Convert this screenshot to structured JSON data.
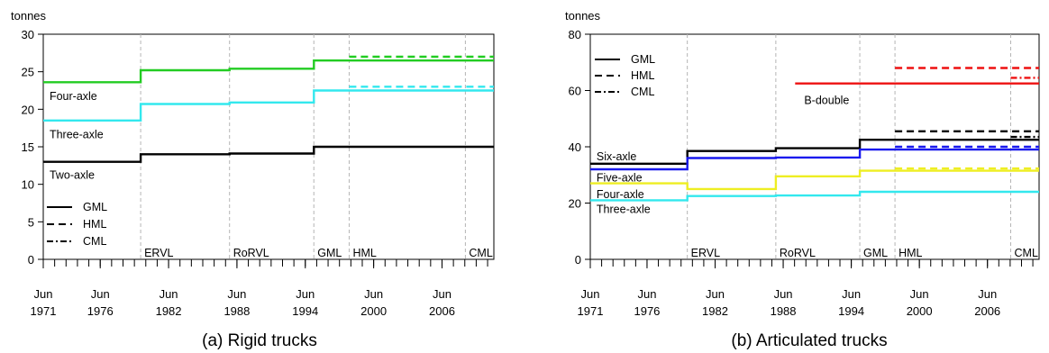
{
  "chart_data": [
    {
      "type": "line",
      "title": "(a) Rigid trucks",
      "ylabel": "tonnes",
      "ylim": [
        0,
        30
      ],
      "yticks": [
        "0",
        "5",
        "10",
        "15",
        "20",
        "25",
        "30"
      ],
      "xlim": [
        1971.45,
        2011.0
      ],
      "xticks": [
        {
          "value": 1971.45,
          "label": [
            "Jun",
            "1971"
          ]
        },
        {
          "value": 1976.45,
          "label": [
            "Jun",
            "1976"
          ]
        },
        {
          "value": 1982.45,
          "label": [
            "Jun",
            "1982"
          ]
        },
        {
          "value": 1988.45,
          "label": [
            "Jun",
            "1988"
          ]
        },
        {
          "value": 1994.45,
          "label": [
            "Jun",
            "1994"
          ]
        },
        {
          "value": 2000.45,
          "label": [
            "Jun",
            "2000"
          ]
        },
        {
          "value": 2006.45,
          "label": [
            "Jun",
            "2006"
          ]
        }
      ],
      "events": [
        {
          "x": 1980.0,
          "label": "ERVL"
        },
        {
          "x": 1987.8,
          "label": "RoRVL"
        },
        {
          "x": 1995.2,
          "label": "GML"
        },
        {
          "x": 1998.3,
          "label": "HML"
        },
        {
          "x": 2008.5,
          "label": "CML"
        }
      ],
      "series": [
        {
          "name": "Four-axle",
          "color": "#22cc22",
          "style": "solid",
          "points": [
            [
              1971.45,
              23.6
            ],
            [
              1980.0,
              23.6
            ],
            [
              1980.0,
              25.2
            ],
            [
              1987.8,
              25.2
            ],
            [
              1987.8,
              25.4
            ],
            [
              1995.2,
              25.4
            ],
            [
              1995.2,
              26.5
            ],
            [
              2011.0,
              26.5
            ]
          ]
        },
        {
          "name": "",
          "color": "#22cc22",
          "style": "dashed",
          "points": [
            [
              1998.3,
              27.0
            ],
            [
              2011.0,
              27.0
            ]
          ]
        },
        {
          "name": "Three-axle",
          "color": "#33e8ee",
          "style": "solid",
          "points": [
            [
              1971.45,
              18.5
            ],
            [
              1980.0,
              18.5
            ],
            [
              1980.0,
              20.7
            ],
            [
              1987.8,
              20.7
            ],
            [
              1987.8,
              20.9
            ],
            [
              1995.2,
              20.9
            ],
            [
              1995.2,
              22.5
            ],
            [
              2011.0,
              22.5
            ]
          ]
        },
        {
          "name": "",
          "color": "#33e8ee",
          "style": "dashed",
          "points": [
            [
              1998.3,
              23.0
            ],
            [
              2011.0,
              23.0
            ]
          ]
        },
        {
          "name": "Two-axle",
          "color": "#000000",
          "style": "solid",
          "points": [
            [
              1971.45,
              13.0
            ],
            [
              1980.0,
              13.0
            ],
            [
              1980.0,
              14.0
            ],
            [
              1987.8,
              14.0
            ],
            [
              1987.8,
              14.1
            ],
            [
              1995.2,
              14.1
            ],
            [
              1995.2,
              15.0
            ],
            [
              2011.0,
              15.0
            ]
          ]
        }
      ],
      "series_labels": [
        {
          "text": "Four-axle",
          "x": 1972.0,
          "y": 21.7
        },
        {
          "text": "Three-axle",
          "x": 1972.0,
          "y": 16.6
        },
        {
          "text": "Two-axle",
          "x": 1972.0,
          "y": 11.2
        }
      ],
      "legend": {
        "position": "bottom-left",
        "entries": [
          {
            "label": "GML",
            "style": "solid"
          },
          {
            "label": "HML",
            "style": "dashed"
          },
          {
            "label": "CML",
            "style": "dashdot"
          }
        ]
      },
      "grid": false
    },
    {
      "type": "line",
      "title": "(b) Articulated trucks",
      "ylabel": "tonnes",
      "ylim": [
        0,
        80
      ],
      "yticks": [
        "0",
        "20",
        "40",
        "60",
        "80"
      ],
      "xlim": [
        1971.45,
        2011.0
      ],
      "xticks": [
        {
          "value": 1971.45,
          "label": [
            "Jun",
            "1971"
          ]
        },
        {
          "value": 1976.45,
          "label": [
            "Jun",
            "1976"
          ]
        },
        {
          "value": 1982.45,
          "label": [
            "Jun",
            "1982"
          ]
        },
        {
          "value": 1988.45,
          "label": [
            "Jun",
            "1988"
          ]
        },
        {
          "value": 1994.45,
          "label": [
            "Jun",
            "1994"
          ]
        },
        {
          "value": 2000.45,
          "label": [
            "Jun",
            "2000"
          ]
        },
        {
          "value": 2006.45,
          "label": [
            "Jun",
            "2006"
          ]
        }
      ],
      "events": [
        {
          "x": 1980.0,
          "label": "ERVL"
        },
        {
          "x": 1987.8,
          "label": "RoRVL"
        },
        {
          "x": 1995.2,
          "label": "GML"
        },
        {
          "x": 1998.3,
          "label": "HML"
        },
        {
          "x": 2008.5,
          "label": "CML"
        }
      ],
      "series": [
        {
          "name": "B-double",
          "color": "#ee1111",
          "style": "solid",
          "points": [
            [
              1989.5,
              62.5
            ],
            [
              2011.0,
              62.5
            ]
          ]
        },
        {
          "name": "",
          "color": "#ee1111",
          "style": "dashed",
          "points": [
            [
              1998.3,
              68.0
            ],
            [
              2011.0,
              68.0
            ]
          ]
        },
        {
          "name": "",
          "color": "#ee1111",
          "style": "dashdot",
          "points": [
            [
              2008.5,
              64.5
            ],
            [
              2011.0,
              64.5
            ]
          ]
        },
        {
          "name": "Six-axle",
          "color": "#000000",
          "style": "solid",
          "points": [
            [
              1971.45,
              34.0
            ],
            [
              1980.0,
              34.0
            ],
            [
              1980.0,
              38.5
            ],
            [
              1987.8,
              38.5
            ],
            [
              1987.8,
              39.5
            ],
            [
              1995.2,
              39.5
            ],
            [
              1995.2,
              42.5
            ],
            [
              2011.0,
              42.5
            ]
          ]
        },
        {
          "name": "",
          "color": "#000000",
          "style": "dashed",
          "points": [
            [
              1998.3,
              45.5
            ],
            [
              2011.0,
              45.5
            ]
          ]
        },
        {
          "name": "",
          "color": "#000000",
          "style": "dashdot",
          "points": [
            [
              2008.5,
              43.5
            ],
            [
              2011.0,
              43.5
            ]
          ]
        },
        {
          "name": "Five-axle",
          "color": "#1a1aee",
          "style": "solid",
          "points": [
            [
              1971.45,
              32.0
            ],
            [
              1980.0,
              32.0
            ],
            [
              1980.0,
              36.0
            ],
            [
              1987.8,
              36.0
            ],
            [
              1987.8,
              36.2
            ],
            [
              1995.2,
              36.2
            ],
            [
              1995.2,
              39.0
            ],
            [
              2011.0,
              39.0
            ]
          ]
        },
        {
          "name": "",
          "color": "#1a1aee",
          "style": "dashed",
          "points": [
            [
              1998.3,
              40.0
            ],
            [
              2011.0,
              40.0
            ]
          ]
        },
        {
          "name": "Four-axle",
          "color": "#eeee22",
          "style": "solid",
          "points": [
            [
              1971.45,
              27.0
            ],
            [
              1980.0,
              27.0
            ],
            [
              1980.0,
              25.0
            ],
            [
              1987.8,
              25.0
            ],
            [
              1987.8,
              29.5
            ],
            [
              1995.2,
              29.5
            ],
            [
              1995.2,
              31.5
            ],
            [
              2011.0,
              31.5
            ]
          ]
        },
        {
          "name": "",
          "color": "#eeee22",
          "style": "dashed",
          "points": [
            [
              1998.3,
              32.3
            ],
            [
              2011.0,
              32.3
            ]
          ]
        },
        {
          "name": "Three-axle",
          "color": "#33e8ee",
          "style": "solid",
          "points": [
            [
              1971.45,
              21.0
            ],
            [
              1980.0,
              21.0
            ],
            [
              1980.0,
              22.5
            ],
            [
              1987.8,
              22.5
            ],
            [
              1987.8,
              22.7
            ],
            [
              1995.2,
              22.7
            ],
            [
              1995.2,
              24.0
            ],
            [
              2011.0,
              24.0
            ]
          ]
        }
      ],
      "series_labels": [
        {
          "text": "B-double",
          "x": 1990.3,
          "y": 56.5
        },
        {
          "text": "Six-axle",
          "x": 1972.0,
          "y": 36.5
        },
        {
          "text": "Five-axle",
          "x": 1972.0,
          "y": 29.0
        },
        {
          "text": "Four-axle",
          "x": 1972.0,
          "y": 23.0
        },
        {
          "text": "Three-axle",
          "x": 1972.0,
          "y": 17.8
        }
      ],
      "legend": {
        "position": "top-left",
        "entries": [
          {
            "label": "GML",
            "style": "solid"
          },
          {
            "label": "HML",
            "style": "dashed"
          },
          {
            "label": "CML",
            "style": "dashdot"
          }
        ]
      },
      "grid": false
    }
  ]
}
